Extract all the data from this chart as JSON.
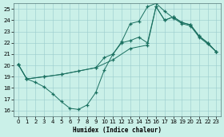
{
  "bg_color": "#caf0e8",
  "grid_color": "#99cccc",
  "line_color": "#1a7060",
  "xlabel": "Humidex (Indice chaleur)",
  "xlim": [
    -0.5,
    23.5
  ],
  "ylim": [
    15.5,
    25.5
  ],
  "xticks": [
    0,
    1,
    2,
    3,
    4,
    5,
    6,
    7,
    8,
    9,
    10,
    11,
    12,
    13,
    14,
    15,
    16,
    17,
    18,
    19,
    20,
    21,
    22,
    23
  ],
  "yticks": [
    16,
    17,
    18,
    19,
    20,
    21,
    22,
    23,
    24,
    25
  ],
  "line1_x": [
    0,
    1,
    2,
    3,
    4,
    5,
    6,
    7,
    8,
    9,
    10,
    11,
    12,
    13,
    14,
    15,
    16,
    17,
    18,
    19,
    20,
    21,
    22,
    23
  ],
  "line1_y": [
    20.1,
    18.8,
    18.5,
    18.1,
    17.5,
    16.8,
    16.2,
    16.1,
    16.5,
    17.6,
    19.6,
    21.0,
    22.1,
    23.7,
    23.9,
    25.2,
    25.5,
    24.8,
    24.2,
    23.7,
    23.5,
    22.5,
    21.9,
    21.2
  ],
  "line2_x": [
    0,
    1,
    3,
    5,
    7,
    9,
    10,
    11,
    12,
    13,
    14,
    15,
    16,
    17,
    18,
    19,
    20,
    21,
    22,
    23
  ],
  "line2_y": [
    20.1,
    18.8,
    19.0,
    19.2,
    19.5,
    19.8,
    20.7,
    21.0,
    22.0,
    22.2,
    22.5,
    22.0,
    25.2,
    24.0,
    24.3,
    23.8,
    23.6,
    22.6,
    22.0,
    21.2
  ],
  "line3_x": [
    0,
    1,
    3,
    5,
    9,
    11,
    13,
    15,
    16,
    17,
    18,
    19,
    20,
    21,
    22,
    23
  ],
  "line3_y": [
    20.1,
    18.8,
    19.0,
    19.2,
    19.8,
    20.5,
    21.5,
    21.8,
    25.2,
    24.0,
    24.3,
    23.8,
    23.6,
    22.6,
    22.0,
    21.2
  ]
}
